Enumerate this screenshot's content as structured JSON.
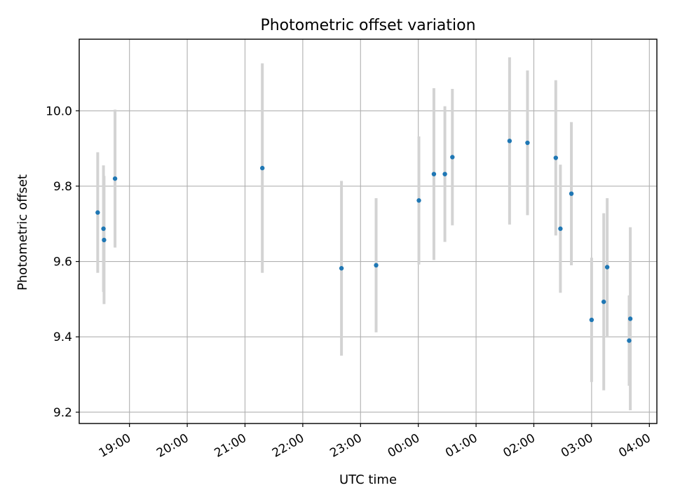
{
  "chart_data": {
    "type": "scatter",
    "title": "Photometric offset variation",
    "xlabel": "UTC time",
    "ylabel": "Photometric offset",
    "x_unit": "UTC hours (18 = 18:00 on first night, 24 = 00:00, 28 = 04:00 next day)",
    "x_ticks": [
      {
        "value": 19,
        "label": "19:00"
      },
      {
        "value": 20,
        "label": "20:00"
      },
      {
        "value": 21,
        "label": "21:00"
      },
      {
        "value": 22,
        "label": "22:00"
      },
      {
        "value": 23,
        "label": "23:00"
      },
      {
        "value": 24,
        "label": "00:00"
      },
      {
        "value": 25,
        "label": "01:00"
      },
      {
        "value": 26,
        "label": "02:00"
      },
      {
        "value": 27,
        "label": "03:00"
      },
      {
        "value": 28,
        "label": "04:00"
      }
    ],
    "y_ticks": [
      {
        "value": 9.2,
        "label": "9.2"
      },
      {
        "value": 9.4,
        "label": "9.4"
      },
      {
        "value": 9.6,
        "label": "9.6"
      },
      {
        "value": 9.8,
        "label": "9.8"
      },
      {
        "value": 10.0,
        "label": "10.0"
      }
    ],
    "xlim": [
      18.13,
      28.13
    ],
    "ylim": [
      9.17,
      10.19
    ],
    "grid": true,
    "marker_color": "#1f77b4",
    "errorbar_color": "#d3d3d3",
    "points": [
      {
        "x": 18.45,
        "y": 9.73,
        "err": 0.16
      },
      {
        "x": 18.55,
        "y": 9.687,
        "err": 0.168
      },
      {
        "x": 18.56,
        "y": 9.657,
        "err": 0.17
      },
      {
        "x": 18.75,
        "y": 9.82,
        "err": 0.183
      },
      {
        "x": 21.3,
        "y": 9.848,
        "err": 0.278
      },
      {
        "x": 22.67,
        "y": 9.582,
        "err": 0.232
      },
      {
        "x": 23.27,
        "y": 9.59,
        "err": 0.178
      },
      {
        "x": 24.01,
        "y": 9.762,
        "err": 0.17
      },
      {
        "x": 24.27,
        "y": 9.832,
        "err": 0.228
      },
      {
        "x": 24.46,
        "y": 9.832,
        "err": 0.18
      },
      {
        "x": 24.59,
        "y": 9.877,
        "err": 0.181
      },
      {
        "x": 25.58,
        "y": 9.92,
        "err": 0.222
      },
      {
        "x": 25.89,
        "y": 9.915,
        "err": 0.192
      },
      {
        "x": 26.38,
        "y": 9.875,
        "err": 0.206
      },
      {
        "x": 26.46,
        "y": 9.687,
        "err": 0.17
      },
      {
        "x": 26.65,
        "y": 9.78,
        "err": 0.19
      },
      {
        "x": 27.0,
        "y": 9.445,
        "err": 0.165
      },
      {
        "x": 27.21,
        "y": 9.493,
        "err": 0.235
      },
      {
        "x": 27.27,
        "y": 9.585,
        "err": 0.183
      },
      {
        "x": 27.67,
        "y": 9.448,
        "err": 0.243
      },
      {
        "x": 27.65,
        "y": 9.39,
        "err": 0.12
      }
    ]
  }
}
